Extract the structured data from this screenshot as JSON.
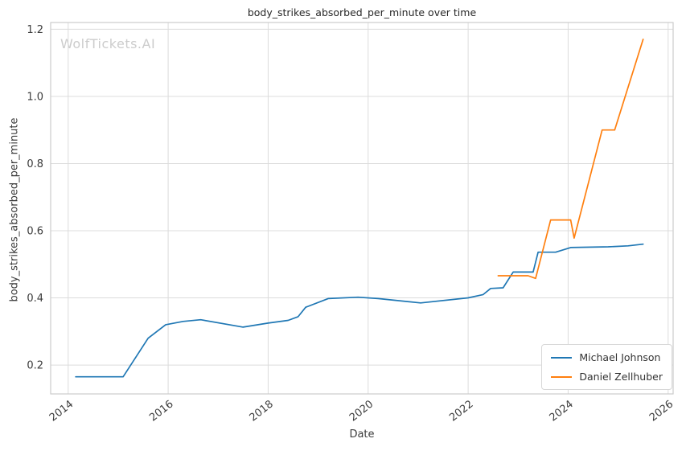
{
  "watermark": {
    "text": "WolfTickets.AI",
    "color": "#cccccc"
  },
  "chart_data": {
    "type": "line",
    "title": "body_strikes_absorbed_per_minute over time",
    "xlabel": "Date",
    "ylabel": "body_strikes_absorbed_per_minute",
    "x_ticks": {
      "values": [
        2014,
        2016,
        2018,
        2020,
        2022,
        2024,
        2026
      ],
      "labels": [
        "2014",
        "2016",
        "2018",
        "2020",
        "2022",
        "2024",
        "2026"
      ]
    },
    "y_ticks": {
      "values": [
        0.2,
        0.4,
        0.6,
        0.8,
        1.0,
        1.2
      ],
      "labels": [
        "0.2",
        "0.4",
        "0.6",
        "0.8",
        "1.0",
        "1.2"
      ]
    },
    "xlim": [
      2013.65,
      2026.1
    ],
    "ylim": [
      0.114,
      1.22
    ],
    "grid": true,
    "grid_color": "#dcdcdc",
    "spine_color": "#cccccc",
    "legend_position": "lower right",
    "series": [
      {
        "name": "Michael Johnson",
        "color": "#1f77b4",
        "x": [
          2014.15,
          2015.1,
          2015.6,
          2015.95,
          2016.3,
          2016.65,
          2017.5,
          2018.0,
          2018.4,
          2018.6,
          2018.75,
          2019.2,
          2019.8,
          2020.2,
          2021.05,
          2022.0,
          2022.3,
          2022.45,
          2022.7,
          2022.9,
          2023.3,
          2023.4,
          2023.75,
          2024.05,
          2024.8,
          2025.2,
          2025.5
        ],
        "y": [
          0.165,
          0.165,
          0.28,
          0.32,
          0.33,
          0.335,
          0.313,
          0.325,
          0.333,
          0.344,
          0.372,
          0.398,
          0.402,
          0.398,
          0.385,
          0.4,
          0.41,
          0.428,
          0.43,
          0.477,
          0.477,
          0.536,
          0.536,
          0.55,
          0.552,
          0.555,
          0.56
        ]
      },
      {
        "name": "Daniel Zellhuber",
        "color": "#ff7f0e",
        "x": [
          2022.6,
          2023.2,
          2023.35,
          2023.65,
          2024.05,
          2024.12,
          2024.68,
          2024.93,
          2025.5
        ],
        "y": [
          0.466,
          0.466,
          0.458,
          0.632,
          0.632,
          0.578,
          0.9,
          0.9,
          1.17
        ]
      }
    ]
  }
}
